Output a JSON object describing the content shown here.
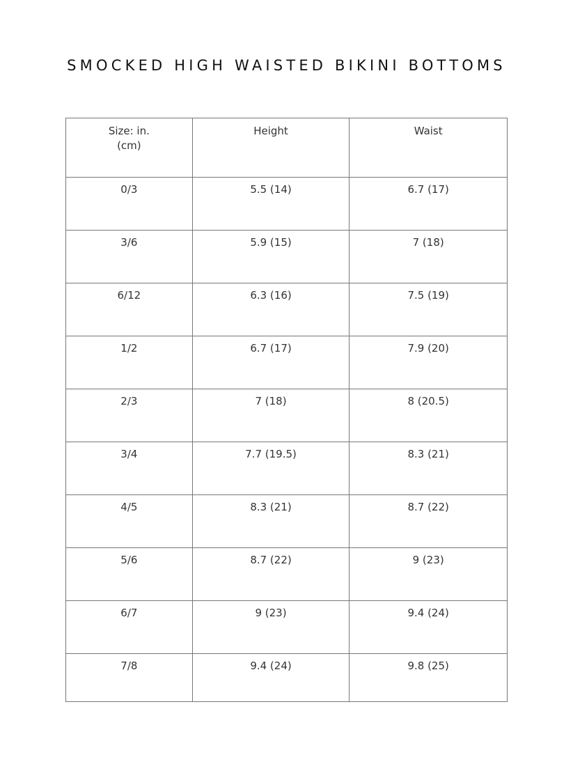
{
  "title": "SMOCKED HIGH WAISTED BIKINI BOTTOMS",
  "table": {
    "headers": [
      "Size: in.\n(cm)",
      "Height",
      "Waist"
    ],
    "header_size_line1": "Size: in.",
    "header_size_line2": "(cm)",
    "rows": [
      [
        "0/3",
        "5.5 (14)",
        "6.7 (17)"
      ],
      [
        "3/6",
        "5.9 (15)",
        "7 (18)"
      ],
      [
        "6/12",
        "6.3 (16)",
        "7.5 (19)"
      ],
      [
        "1/2",
        "6.7 (17)",
        "7.9 (20)"
      ],
      [
        "2/3",
        "7 (18)",
        "8 (20.5)"
      ],
      [
        "3/4",
        "7.7 (19.5)",
        "8.3 (21)"
      ],
      [
        "4/5",
        "8.3 (21)",
        "8.7 (22)"
      ],
      [
        "5/6",
        "8.7 (22)",
        "9 (23)"
      ],
      [
        "6/7",
        "9 (23)",
        "9.4 (24)"
      ],
      [
        "7/8",
        "9.4 (24)",
        "9.8 (25)"
      ]
    ]
  }
}
